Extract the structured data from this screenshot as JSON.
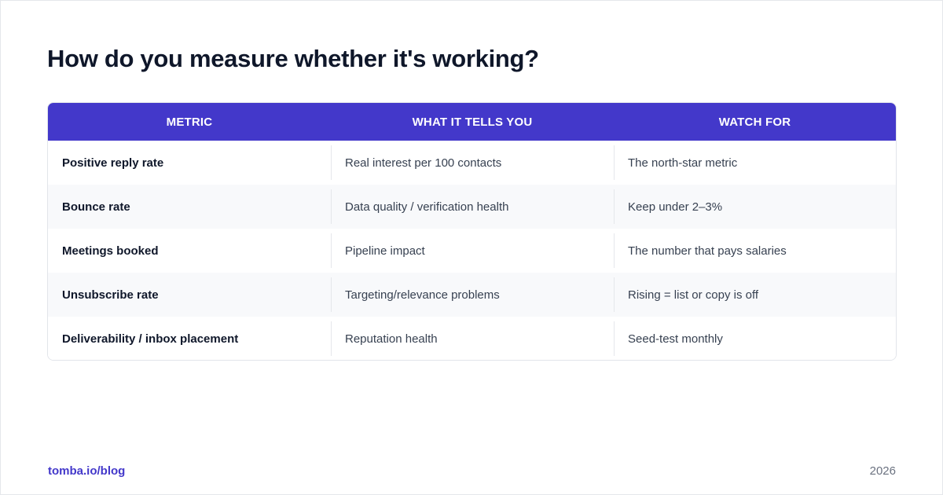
{
  "page": {
    "title": "How do you measure whether it's working?"
  },
  "table": {
    "columns": [
      "METRIC",
      "WHAT IT TELLS YOU",
      "WATCH FOR"
    ],
    "rows": [
      [
        "Positive reply rate",
        "Real interest per 100 contacts",
        "The north-star metric"
      ],
      [
        "Bounce rate",
        "Data quality / verification health",
        "Keep under 2–3%"
      ],
      [
        "Meetings booked",
        "Pipeline impact",
        "The number that pays salaries"
      ],
      [
        "Unsubscribe rate",
        "Targeting/relevance problems",
        "Rising = list or copy is off"
      ],
      [
        "Deliverability / inbox placement",
        "Reputation health",
        "Seed-test monthly"
      ]
    ]
  },
  "footer": {
    "link": "tomba.io/blog",
    "year": "2026"
  },
  "colors": {
    "accent": "#4338ca",
    "title": "#0f172a",
    "row_alt": "#f8f9fb"
  }
}
